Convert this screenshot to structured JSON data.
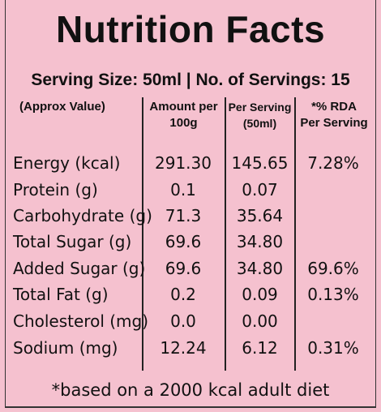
{
  "title": "Nutrition Facts",
  "serving_line": "Serving Size: 50ml  |  No. of Servings: 15",
  "headers": {
    "col0": "(Approx Value)",
    "col1_line1": "Amount per",
    "col1_line2": "100g",
    "col2_line1": "Per Serving",
    "col2_line2": "(50ml)",
    "col3_line1": "*% RDA",
    "col3_line2": "Per Serving"
  },
  "rows": [
    {
      "name": "Energy (kcal)",
      "per100": "291.30",
      "serving": "145.65",
      "rda": "7.28%"
    },
    {
      "name": "Protein (g)",
      "per100": "0.1",
      "serving": "0.07",
      "rda": ""
    },
    {
      "name": "Carbohydrate (g)",
      "per100": "71.3",
      "serving": "35.64",
      "rda": ""
    },
    {
      "name": "Total Sugar (g)",
      "per100": "69.6",
      "serving": "34.80",
      "rda": ""
    },
    {
      "name": "Added Sugar (g)",
      "per100": "69.6",
      "serving": "34.80",
      "rda": "69.6%"
    },
    {
      "name": "Total Fat (g)",
      "per100": "0.2",
      "serving": "0.09",
      "rda": "0.13%"
    },
    {
      "name": "Cholesterol (mg)",
      "per100": "0.0",
      "serving": "0.00",
      "rda": ""
    },
    {
      "name": "Sodium (mg)",
      "per100": "12.24",
      "serving": "6.12",
      "rda": "0.31%"
    }
  ],
  "footnote": "*based on a 2000 kcal adult diet"
}
